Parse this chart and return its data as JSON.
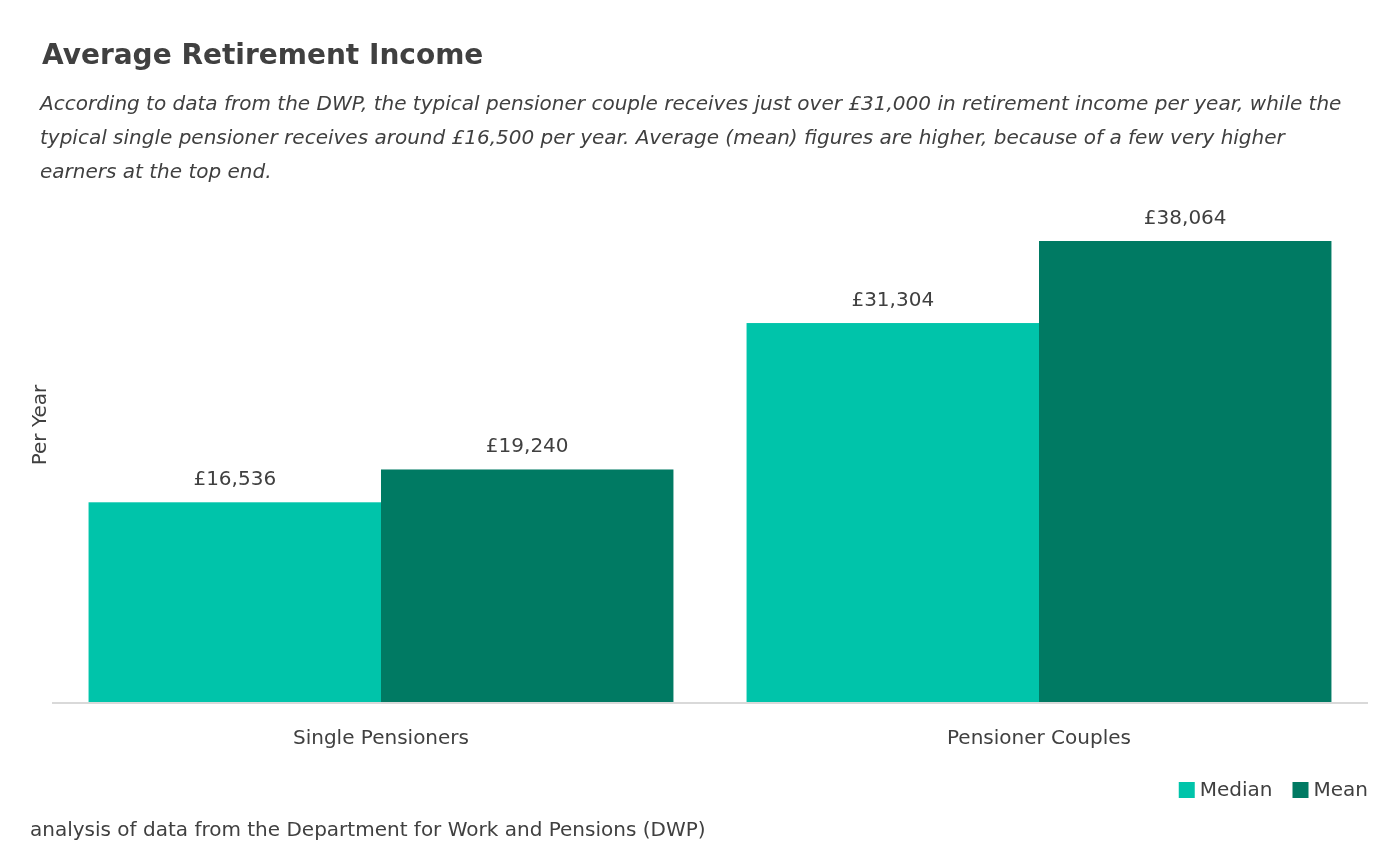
{
  "chart_data": {
    "type": "bar",
    "title": "Average Retirement Income",
    "subtitle": "According to data from the DWP, the typical pensioner couple receives just over £31,000 in retirement income per year, while the typical single pensioner receives around £16,500 per year. Average (mean) figures are higher, because of a few very higher earners at the top end.",
    "ylabel": "Per Year",
    "categories": [
      "Single Pensioners",
      "Pensioner Couples"
    ],
    "series": [
      {
        "name": "Median",
        "color": "#00c4aa",
        "values": [
          16536,
          31304
        ],
        "value_labels": [
          "£16,536",
          "£31,304"
        ]
      },
      {
        "name": "Mean",
        "color": "#007a63",
        "values": [
          19240,
          38064
        ],
        "value_labels": [
          "£19,240",
          "£38,064"
        ]
      }
    ],
    "legend": "bottom right",
    "annotations": [
      "analysis of data from the Department for Work and Pensions (DWP)"
    ]
  }
}
